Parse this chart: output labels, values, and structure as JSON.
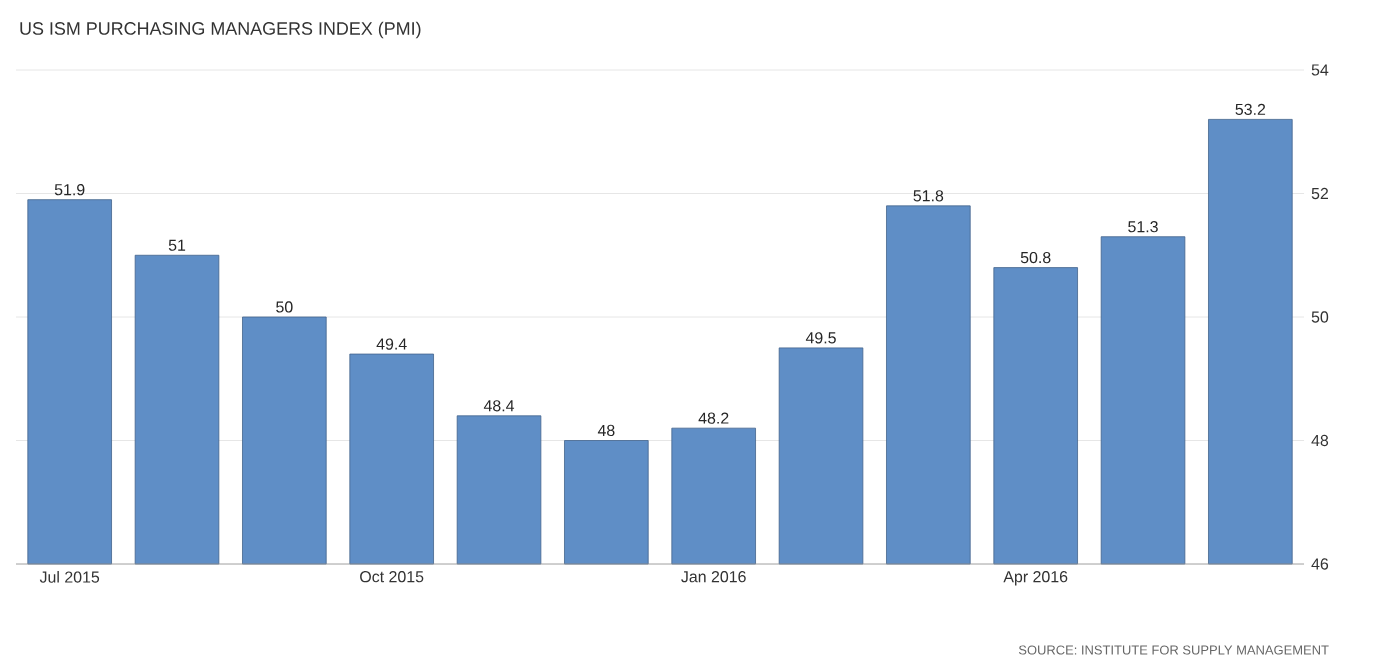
{
  "chart_data": {
    "type": "bar",
    "title": "US ISM PURCHASING MANAGERS INDEX (PMI)",
    "categories": [
      "Jul 2015",
      null,
      null,
      "Oct 2015",
      null,
      null,
      "Jan 2016",
      null,
      null,
      "Apr 2016",
      null,
      null
    ],
    "values": [
      51.9,
      51,
      50,
      49.4,
      48.4,
      48,
      48.2,
      49.5,
      51.8,
      50.8,
      51.3,
      53.2
    ],
    "color": "#5f8ec6",
    "ylim": [
      46,
      54
    ],
    "yticks": [
      46,
      48,
      50,
      52,
      54
    ],
    "grid": "y",
    "data_labels": true,
    "annotations": [
      "SOURCE: INSTITUTE FOR SUPPLY MANAGEMENT"
    ]
  }
}
